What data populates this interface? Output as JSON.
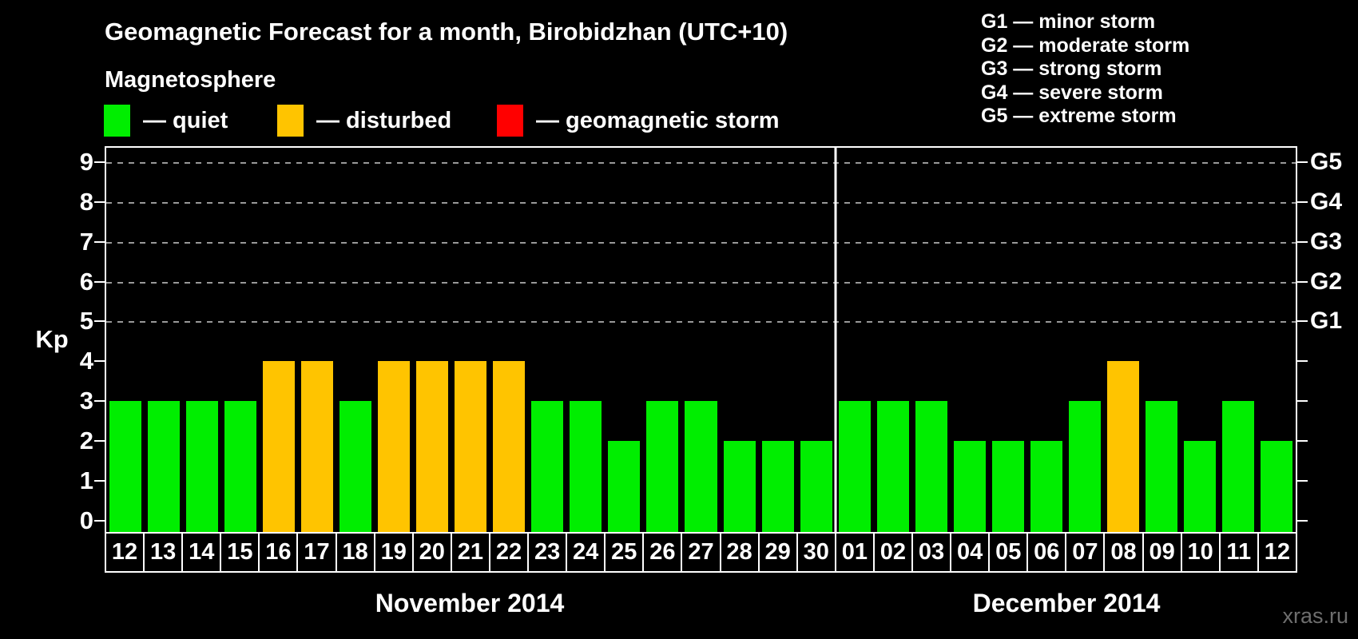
{
  "header": {
    "title": "Geomagnetic Forecast for a month, Birobidzhan (UTC+10)"
  },
  "legend": {
    "title": "Magnetosphere",
    "items": [
      {
        "label": "— quiet",
        "state": "quiet",
        "color": "#00ee00"
      },
      {
        "label": "— disturbed",
        "state": "disturbed",
        "color": "#ffc400"
      },
      {
        "label": "— geomagnetic storm",
        "state": "storm",
        "color": "#ff0000"
      }
    ]
  },
  "g_legend": {
    "items": [
      "G1 — minor storm",
      "G2 — moderate storm",
      "G3 — strong storm",
      "G4 — severe storm",
      "G5 — extreme storm"
    ]
  },
  "watermark": "xras.ru",
  "chart_data": {
    "type": "bar",
    "title": "Geomagnetic Forecast for a month, Birobidzhan (UTC+10)",
    "ylabel": "Kp",
    "ylim": [
      0,
      9.4
    ],
    "y_ticks": [
      0,
      1,
      2,
      3,
      4,
      5,
      6,
      7,
      8,
      9
    ],
    "grid": "dashed horizontal gridlines at Kp 5-9 only",
    "legend_position": "top",
    "right_axis_labels": [
      {
        "kp": 5,
        "label": "G1"
      },
      {
        "kp": 6,
        "label": "G2"
      },
      {
        "kp": 7,
        "label": "G3"
      },
      {
        "kp": 8,
        "label": "G4"
      },
      {
        "kp": 9,
        "label": "G5"
      }
    ],
    "bar_colors": {
      "quiet": "#00ee00",
      "disturbed": "#ffc400",
      "storm": "#ff0000"
    },
    "months": [
      {
        "label": "November 2014",
        "days": [
          "12",
          "13",
          "14",
          "15",
          "16",
          "17",
          "18",
          "19",
          "20",
          "21",
          "22",
          "23",
          "24",
          "25",
          "26",
          "27",
          "28",
          "29",
          "30"
        ],
        "values": [
          3,
          3,
          3,
          3,
          4,
          4,
          3,
          4,
          4,
          4,
          4,
          3,
          3,
          2,
          3,
          3,
          2,
          2,
          2
        ],
        "states": [
          "quiet",
          "quiet",
          "quiet",
          "quiet",
          "disturbed",
          "disturbed",
          "quiet",
          "disturbed",
          "disturbed",
          "disturbed",
          "disturbed",
          "quiet",
          "quiet",
          "quiet",
          "quiet",
          "quiet",
          "quiet",
          "quiet",
          "quiet"
        ]
      },
      {
        "label": "December 2014",
        "days": [
          "01",
          "02",
          "03",
          "04",
          "05",
          "06",
          "07",
          "08",
          "09",
          "10",
          "11",
          "12"
        ],
        "values": [
          3,
          3,
          3,
          2,
          2,
          2,
          3,
          4,
          3,
          2,
          3,
          2
        ],
        "states": [
          "quiet",
          "quiet",
          "quiet",
          "quiet",
          "quiet",
          "quiet",
          "quiet",
          "disturbed",
          "quiet",
          "quiet",
          "quiet",
          "quiet"
        ]
      }
    ]
  }
}
